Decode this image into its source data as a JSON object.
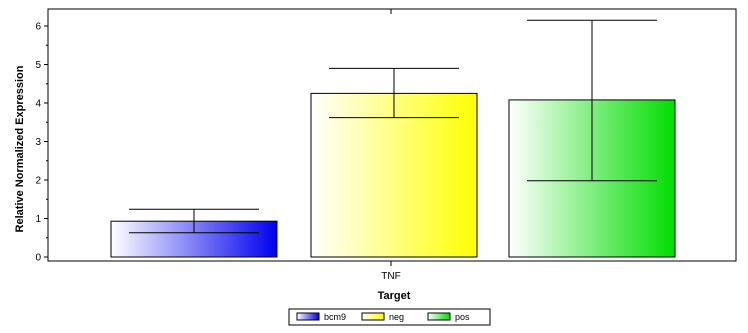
{
  "chart_data": {
    "type": "bar",
    "categories": [
      "TNF"
    ],
    "series": [
      {
        "name": "bcm9",
        "value": 0.93,
        "err_low": 0.63,
        "err_high": 1.24,
        "color": "#0000ee"
      },
      {
        "name": "neg",
        "value": 4.25,
        "err_low": 3.62,
        "err_high": 4.9,
        "color": "#ffff00"
      },
      {
        "name": "pos",
        "value": 4.08,
        "err_low": 1.98,
        "err_high": 6.15,
        "color": "#00dd00"
      }
    ],
    "xlabel": "Target",
    "ylabel": "Relative Normalized Expression",
    "ylim": [
      0,
      6.5
    ],
    "yticks": [
      "0",
      "1",
      "2",
      "3",
      "4",
      "5",
      "6"
    ],
    "legend_position": "bottom-center",
    "grid": false
  }
}
